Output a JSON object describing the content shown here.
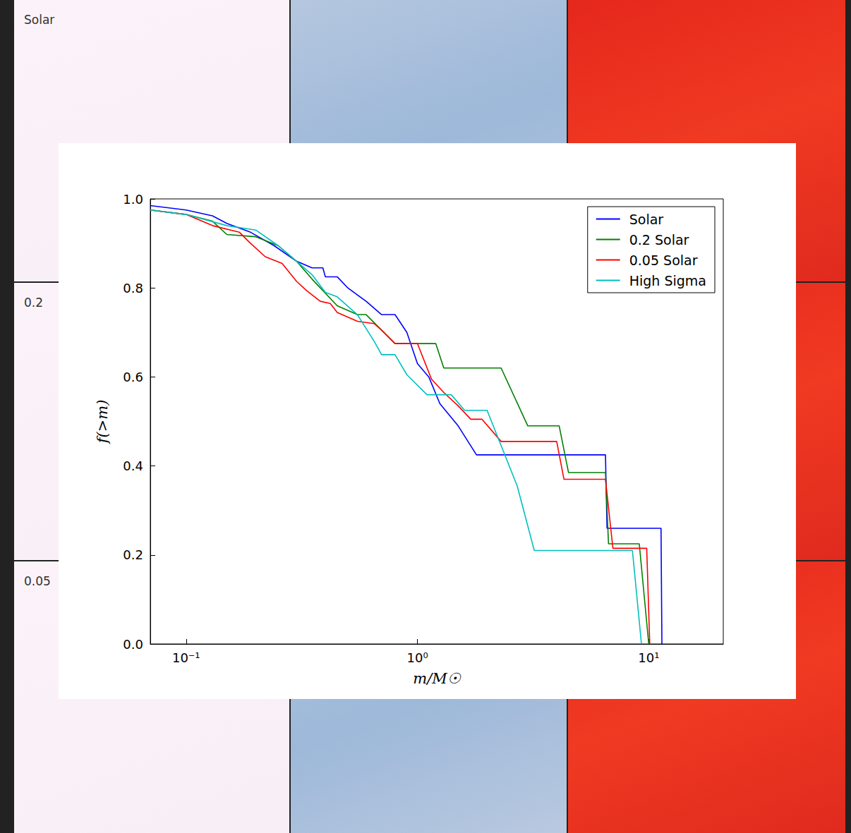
{
  "chart_data": {
    "type": "line",
    "x_label": "m/M☉",
    "y_label": "f(>m)",
    "log": "x",
    "grid": false,
    "legend": "upper right",
    "xlim": [
      0.07,
      21
    ],
    "xticks": [
      {
        "value": 0.1,
        "label": "10⁻¹"
      },
      {
        "value": 1,
        "label": "10⁰"
      },
      {
        "value": 10,
        "label": "10¹"
      }
    ],
    "ylim": [
      0,
      1
    ],
    "yticks": [
      {
        "value": 0,
        "label": "0.0"
      },
      0.2,
      0.4,
      0.6,
      0.8,
      {
        "value": 1,
        "label": "1.0"
      }
    ],
    "series": [
      {
        "name": "Solar",
        "color": "#0000ff",
        "x": [
          0.07,
          0.1,
          0.13,
          0.15,
          0.19,
          0.24,
          0.3,
          0.35,
          0.39,
          0.4,
          0.45,
          0.5,
          0.6,
          0.7,
          0.8,
          0.9,
          1.0,
          1.12,
          1.25,
          1.5,
          1.8,
          6.5,
          6.6,
          11.3,
          11.4
        ],
        "values": [
          0.985,
          0.975,
          0.962,
          0.945,
          0.925,
          0.895,
          0.86,
          0.845,
          0.845,
          0.825,
          0.825,
          0.8,
          0.77,
          0.74,
          0.74,
          0.7,
          0.63,
          0.6,
          0.54,
          0.49,
          0.425,
          0.425,
          0.26,
          0.26,
          0.0
        ]
      },
      {
        "name": "0.2 Solar",
        "color": "#008000",
        "x": [
          0.07,
          0.1,
          0.13,
          0.15,
          0.2,
          0.25,
          0.3,
          0.35,
          0.45,
          0.55,
          0.6,
          0.8,
          1.2,
          1.3,
          2.3,
          3.0,
          4.1,
          4.5,
          6.5,
          6.7,
          9.1,
          10.0
        ],
        "values": [
          0.975,
          0.965,
          0.95,
          0.92,
          0.915,
          0.895,
          0.86,
          0.82,
          0.76,
          0.74,
          0.74,
          0.675,
          0.675,
          0.62,
          0.62,
          0.49,
          0.49,
          0.385,
          0.385,
          0.225,
          0.225,
          0.0
        ]
      },
      {
        "name": "0.05 Solar",
        "color": "#ff0000",
        "x": [
          0.07,
          0.1,
          0.13,
          0.17,
          0.19,
          0.22,
          0.26,
          0.3,
          0.33,
          0.38,
          0.42,
          0.45,
          0.55,
          0.65,
          0.7,
          0.8,
          1.0,
          1.15,
          1.3,
          1.5,
          1.7,
          1.9,
          2.3,
          4.0,
          4.3,
          6.5,
          7.0,
          9.8,
          10.1
        ],
        "values": [
          0.975,
          0.965,
          0.94,
          0.925,
          0.9,
          0.87,
          0.855,
          0.815,
          0.795,
          0.77,
          0.765,
          0.745,
          0.725,
          0.72,
          0.705,
          0.675,
          0.675,
          0.595,
          0.565,
          0.535,
          0.505,
          0.505,
          0.455,
          0.455,
          0.37,
          0.37,
          0.215,
          0.215,
          0.0
        ]
      },
      {
        "name": "High Sigma",
        "color": "#00bfbf",
        "x": [
          0.07,
          0.1,
          0.15,
          0.2,
          0.25,
          0.3,
          0.35,
          0.4,
          0.45,
          0.55,
          0.65,
          0.7,
          0.8,
          0.9,
          1.1,
          1.4,
          1.6,
          2.0,
          2.7,
          3.2,
          8.5,
          9.3
        ],
        "values": [
          0.975,
          0.965,
          0.94,
          0.93,
          0.895,
          0.86,
          0.83,
          0.79,
          0.78,
          0.74,
          0.68,
          0.65,
          0.65,
          0.605,
          0.56,
          0.56,
          0.525,
          0.525,
          0.355,
          0.21,
          0.21,
          0.0
        ]
      }
    ]
  },
  "panel_labels": [
    "Solar",
    "0.2",
    "0.05"
  ]
}
